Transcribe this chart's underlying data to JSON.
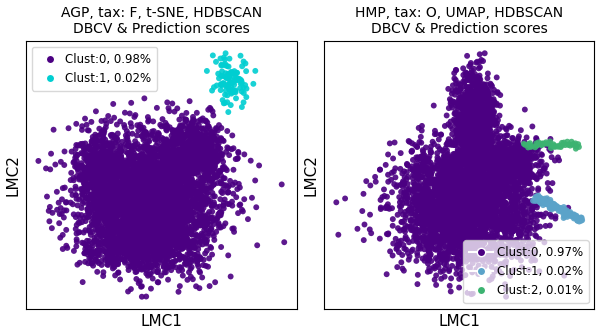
{
  "left_title": "AGP, tax: F, t-SNE, HDBSCAN\nDBCV & Prediction scores",
  "right_title": "HMP, tax: O, UMAP, HDBSCAN\nDBCV & Prediction scores",
  "xlabel": "LMC1",
  "ylabel": "LMC2",
  "left_clusters": {
    "0": {
      "color": "#4b0082",
      "label": "Clust:0, 0.98%",
      "n": 4900
    },
    "1": {
      "color": "#00ced1",
      "label": "Clust:1, 0.02%",
      "n": 100
    }
  },
  "right_clusters": {
    "0": {
      "color": "#4b0082",
      "label": "Clust:0, 0.97%",
      "n": 4850
    },
    "1": {
      "color": "#5ba3c9",
      "label": "Clust:1, 0.02%",
      "n": 100
    },
    "2": {
      "color": "#3cb371",
      "label": "Clust:2, 0.01%",
      "n": 50
    }
  },
  "title_fontsize": 10,
  "axis_label_fontsize": 11,
  "legend_fontsize": 8.5,
  "marker_size": 18,
  "alpha": 0.9,
  "seed": 42
}
